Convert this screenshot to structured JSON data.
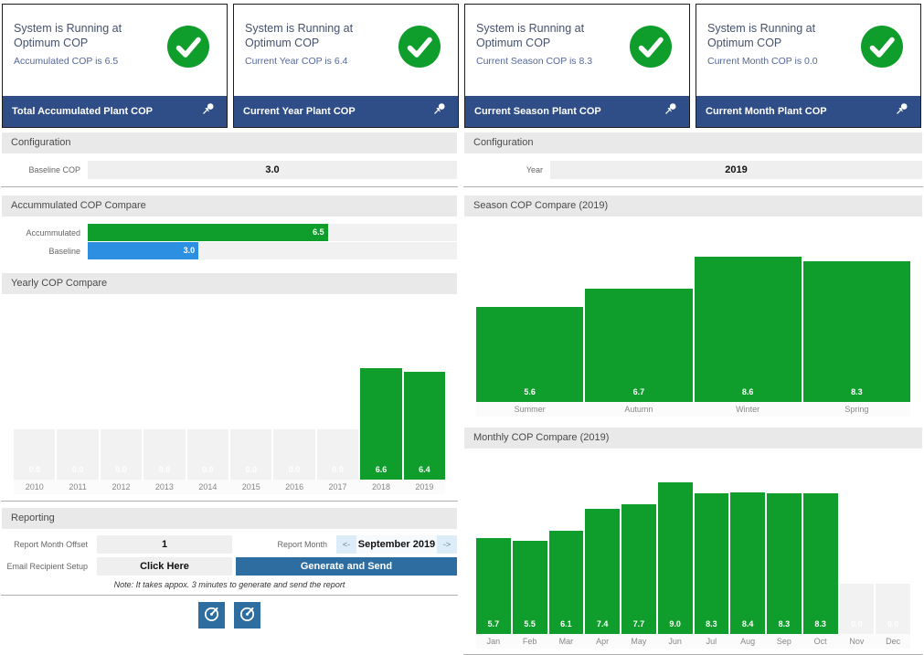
{
  "status_cards": [
    {
      "title": "System is Running at Optimum COP",
      "subtitle": "Accumulated COP is 6.5",
      "footer": "Total Accumulated Plant COP"
    },
    {
      "title": "System is Running at Optimum COP",
      "subtitle": "Current Year COP is 6.4",
      "footer": "Current Year Plant COP"
    },
    {
      "title": "System is Running at Optimum COP",
      "subtitle": "Current Season COP is 8.3",
      "footer": "Current Season Plant COP"
    },
    {
      "title": "System is Running at Optimum COP",
      "subtitle": "Current Month COP is 0.0",
      "footer": "Current Month Plant COP"
    }
  ],
  "left_panel": {
    "configuration": {
      "header": "Configuration",
      "field_label": "Baseline COP",
      "field_value": "3.0"
    },
    "accumulated_section_header": "Accummulated COP Compare",
    "yearly_section_header": "Yearly COP Compare",
    "reporting": {
      "header": "Reporting",
      "report_month_offset_label": "Report Month Offset",
      "report_month_offset_value": "1",
      "report_month_label": "Report Month",
      "prev_arrow": "<-",
      "report_month_value": "September 2019",
      "next_arrow": "->",
      "email_recipient_label": "Email Recipient Setup",
      "email_recipient_value": "Click Here",
      "generate_button_label": "Generate and Send",
      "note": "Note: It takes appox. 3 minutes to generate and send the report"
    }
  },
  "right_panel": {
    "configuration": {
      "header": "Configuration",
      "field_label": "Year",
      "field_value": "2019"
    },
    "season_section_header": "Season COP Compare (2019)",
    "monthly_section_header": "Monthly COP Compare (2019)"
  },
  "colors": {
    "green": "#0f9e2b",
    "blue": "#2d8fe2",
    "navy_footer": "#2f4e88",
    "steel_blue_button": "#2d6d9f",
    "ghost_bar": "#f2f2f2",
    "track": "#f1f1f1",
    "light_blue_strip": "#dcedf8"
  },
  "chart_data": [
    {
      "name": "accumulated-cop-compare",
      "type": "bar",
      "orientation": "horizontal",
      "title": "Accummulated COP Compare",
      "categories": [
        "Accummulated",
        "Baseline"
      ],
      "values": [
        6.5,
        3.0
      ],
      "labels": [
        "6.5",
        "3.0"
      ],
      "colors": [
        "#0f9e2b",
        "#2d8fe2"
      ],
      "xlim": [
        0,
        10
      ],
      "grid": false,
      "legend": false
    },
    {
      "name": "yearly-cop-compare",
      "type": "bar",
      "title": "Yearly COP Compare",
      "categories": [
        "2010",
        "2011",
        "2012",
        "2013",
        "2014",
        "2015",
        "2016",
        "2017",
        "2018",
        "2019"
      ],
      "values": [
        0.0,
        0.0,
        0.0,
        0.0,
        0.0,
        0.0,
        0.0,
        0.0,
        6.6,
        6.4
      ],
      "labels": [
        "0.0",
        "0.0",
        "0.0",
        "0.0",
        "0.0",
        "0.0",
        "0.0",
        "0.0",
        "6.6",
        "6.4"
      ],
      "ghost": [
        true,
        true,
        true,
        true,
        true,
        true,
        true,
        true,
        false,
        false
      ],
      "ghost_height_units": 3.0,
      "ylim": [
        0,
        10.5
      ],
      "grid": false,
      "legend": false
    },
    {
      "name": "season-cop-compare",
      "type": "bar",
      "title": "Season COP Compare (2019)",
      "categories": [
        "Summer",
        "Autumn",
        "Winter",
        "Spring"
      ],
      "values": [
        5.6,
        6.7,
        8.6,
        8.3
      ],
      "labels": [
        "5.6",
        "6.7",
        "8.6",
        "8.3"
      ],
      "ghost": [
        false,
        false,
        false,
        false
      ],
      "ghost_height_units": 3.0,
      "ylim": [
        0,
        10.5
      ],
      "grid": false,
      "legend": false
    },
    {
      "name": "monthly-cop-compare",
      "type": "bar",
      "title": "Monthly COP Compare (2019)",
      "categories": [
        "Jan",
        "Feb",
        "Mar",
        "Apr",
        "May",
        "Jun",
        "Jul",
        "Aug",
        "Sep",
        "Oct",
        "Nov",
        "Dec"
      ],
      "values": [
        5.7,
        5.5,
        6.1,
        7.4,
        7.7,
        9.0,
        8.3,
        8.4,
        8.3,
        8.3,
        0.0,
        0.0
      ],
      "labels": [
        "5.7",
        "5.5",
        "6.1",
        "7.4",
        "7.7",
        "9.0",
        "8.3",
        "8.4",
        "8.3",
        "8.3",
        "0.0",
        "0.0"
      ],
      "ghost": [
        false,
        false,
        false,
        false,
        false,
        false,
        false,
        false,
        false,
        false,
        true,
        true
      ],
      "ghost_height_units": 3.0,
      "ylim": [
        0,
        10.5
      ],
      "grid": false,
      "legend": false
    }
  ]
}
